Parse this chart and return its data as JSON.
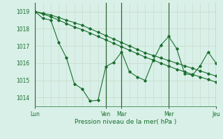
{
  "background_color": "#d8f0e8",
  "grid_color_h": "#c8d8c8",
  "grid_color_v": "#c8d8c8",
  "major_vline_color": "#336633",
  "line_color": "#1a6e2e",
  "xlabel": "Pression niveau de la mer( hPa )",
  "ylim": [
    1013.5,
    1019.5
  ],
  "yticks": [
    1014,
    1015,
    1016,
    1017,
    1018,
    1019
  ],
  "xtick_labels": [
    "Lun",
    "Ven",
    "Mar",
    "Mer",
    "Jeu"
  ],
  "xtick_positions": [
    0,
    9,
    11,
    17,
    23
  ],
  "n_vcols": 24,
  "line1_x": [
    0,
    1,
    2,
    3,
    4,
    5,
    6,
    7,
    8,
    9,
    10,
    11,
    12,
    13,
    14,
    15,
    16,
    17,
    18,
    19,
    20,
    21,
    22,
    23
  ],
  "line1_y": [
    1019.0,
    1018.6,
    1018.5,
    1017.2,
    1016.3,
    1014.8,
    1014.5,
    1013.8,
    1013.85,
    1015.8,
    1016.05,
    1016.65,
    1015.5,
    1015.2,
    1015.0,
    1016.15,
    1017.05,
    1017.55,
    1016.85,
    1015.4,
    1015.3,
    1015.85,
    1016.65,
    1016.0
  ],
  "line2_x": [
    0,
    1,
    2,
    3,
    4,
    5,
    6,
    7,
    8,
    9,
    10,
    11,
    12,
    13,
    14,
    15,
    16,
    17,
    18,
    19,
    20,
    21,
    22,
    23
  ],
  "line2_y": [
    1019.0,
    1018.9,
    1018.8,
    1018.65,
    1018.5,
    1018.35,
    1018.2,
    1018.0,
    1017.8,
    1017.6,
    1017.4,
    1017.2,
    1017.0,
    1016.8,
    1016.6,
    1016.45,
    1016.3,
    1016.15,
    1016.0,
    1015.85,
    1015.7,
    1015.55,
    1015.4,
    1015.25
  ],
  "line3_x": [
    0,
    1,
    2,
    3,
    4,
    5,
    6,
    7,
    8,
    9,
    10,
    11,
    12,
    13,
    14,
    15,
    16,
    17,
    18,
    19,
    20,
    21,
    22,
    23
  ],
  "line3_y": [
    1019.0,
    1018.85,
    1018.7,
    1018.5,
    1018.3,
    1018.1,
    1017.95,
    1017.75,
    1017.55,
    1017.35,
    1017.15,
    1016.95,
    1016.75,
    1016.55,
    1016.35,
    1016.18,
    1016.0,
    1015.82,
    1015.65,
    1015.5,
    1015.35,
    1015.2,
    1015.05,
    1014.9
  ],
  "major_vline_positions": [
    0,
    9,
    11,
    17,
    23
  ],
  "figsize": [
    3.2,
    2.0
  ],
  "dpi": 100
}
